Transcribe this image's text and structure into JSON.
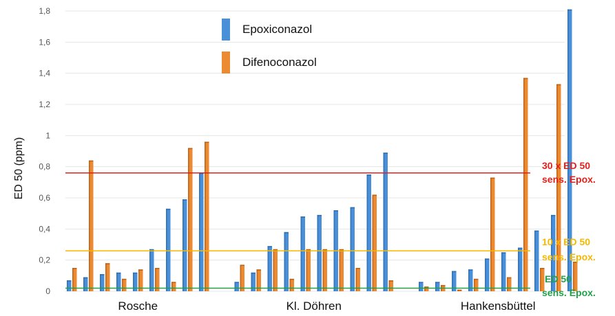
{
  "chart_data": {
    "type": "bar",
    "title": "",
    "xlabel": "",
    "ylabel": "ED 50 (ppm)",
    "ylim": [
      0,
      1.8
    ],
    "yticks": [
      "0",
      "0,2",
      "0,4",
      "0,6",
      "0,8",
      "1",
      "1,2",
      "1,4",
      "1,6",
      "1,8"
    ],
    "grid": true,
    "legend_position": "top-center",
    "groups": [
      {
        "label": "Rosche",
        "pairs": [
          [
            0.07,
            0.15
          ],
          [
            0.09,
            0.84
          ],
          [
            0.11,
            0.18
          ],
          [
            0.12,
            0.08
          ],
          [
            0.12,
            0.14
          ],
          [
            0.27,
            0.15
          ],
          [
            0.53,
            0.06
          ],
          [
            0.59,
            0.92
          ],
          [
            0.76,
            0.96
          ]
        ]
      },
      {
        "label": "Kl. Döhren",
        "pairs": [
          [
            0.06,
            0.17
          ],
          [
            0.12,
            0.14
          ],
          [
            0.29,
            0.27
          ],
          [
            0.38,
            0.08
          ],
          [
            0.48,
            0.27
          ],
          [
            0.49,
            0.27
          ],
          [
            0.52,
            0.27
          ],
          [
            0.54,
            0.15
          ],
          [
            0.75,
            0.62
          ],
          [
            0.89,
            0.07
          ]
        ]
      },
      {
        "label": "Hankensbüttel",
        "pairs": [
          [
            0.06,
            0.03
          ],
          [
            0.06,
            0.04
          ],
          [
            0.13,
            0.01
          ],
          [
            0.14,
            0.08
          ],
          [
            0.21,
            0.73
          ],
          [
            0.25,
            0.09
          ],
          [
            0.28,
            1.37
          ],
          [
            0.39,
            0.15
          ],
          [
            0.49,
            1.33
          ],
          [
            1.81,
            0.19
          ]
        ]
      }
    ],
    "series": [
      {
        "name": "Epoxiconazol",
        "color": "#4a90d9"
      },
      {
        "name": "Difenoconazol",
        "color": "#ec8a32"
      }
    ],
    "reference_lines": [
      {
        "value": 0.76,
        "color": "#e0201b",
        "label_line1": "30 x ED 50",
        "label_line2": "sens. Epox."
      },
      {
        "value": 0.26,
        "color": "#f5b800",
        "label_line1": "10 x ED 50",
        "label_line2": "sens. Epox."
      },
      {
        "value": 0.02,
        "color": "#1fa049",
        "label_line1": "ED 50",
        "label_line2": "sens. Epox."
      }
    ]
  }
}
